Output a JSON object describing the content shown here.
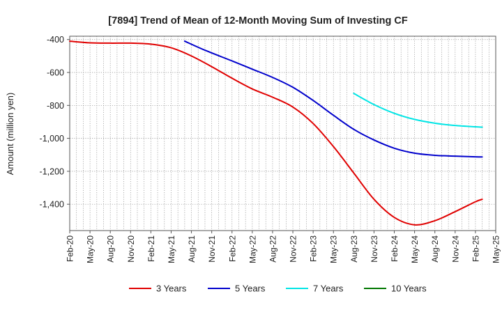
{
  "chart_data": {
    "type": "line",
    "title": "[7894]  Trend of Mean of 12-Month Moving Sum of Investing CF",
    "xlabel": "",
    "ylabel": "Amount (million yen)",
    "ylim": [
      -1560,
      -380
    ],
    "yticks": [
      -400,
      -600,
      -800,
      -1000,
      -1200,
      -1400
    ],
    "ytick_labels": [
      "-400",
      "-600",
      "-800",
      "-1,000",
      "-1,200",
      "-1,400"
    ],
    "x_start": "Feb-20",
    "x_end": "May-25",
    "xtick_labels": [
      "Feb-20",
      "May-20",
      "Aug-20",
      "Nov-20",
      "Feb-21",
      "May-21",
      "Aug-21",
      "Nov-21",
      "Feb-22",
      "May-22",
      "Aug-22",
      "Nov-22",
      "Feb-23",
      "May-23",
      "Aug-23",
      "Nov-23",
      "Feb-24",
      "May-24",
      "Aug-24",
      "Nov-24",
      "Feb-25",
      "May-25"
    ],
    "grid": true,
    "legend_position": "bottom",
    "series": [
      {
        "name": "3 Years",
        "color": "#e00000",
        "points": [
          [
            0,
            -410
          ],
          [
            3,
            -420
          ],
          [
            6,
            -422
          ],
          [
            9,
            -422
          ],
          [
            12,
            -428
          ],
          [
            15,
            -450
          ],
          [
            18,
            -500
          ],
          [
            21,
            -565
          ],
          [
            24,
            -635
          ],
          [
            27,
            -700
          ],
          [
            30,
            -750
          ],
          [
            33,
            -810
          ],
          [
            36,
            -910
          ],
          [
            39,
            -1050
          ],
          [
            42,
            -1210
          ],
          [
            45,
            -1370
          ],
          [
            48,
            -1480
          ],
          [
            51,
            -1525
          ],
          [
            54,
            -1500
          ],
          [
            57,
            -1445
          ],
          [
            60,
            -1385
          ],
          [
            61,
            -1370
          ]
        ]
      },
      {
        "name": "5 Years",
        "color": "#0000cc",
        "points": [
          [
            17,
            -410
          ],
          [
            20,
            -465
          ],
          [
            24,
            -530
          ],
          [
            27,
            -580
          ],
          [
            30,
            -630
          ],
          [
            33,
            -690
          ],
          [
            36,
            -770
          ],
          [
            39,
            -860
          ],
          [
            42,
            -945
          ],
          [
            45,
            -1010
          ],
          [
            48,
            -1060
          ],
          [
            51,
            -1090
          ],
          [
            54,
            -1103
          ],
          [
            57,
            -1108
          ],
          [
            60,
            -1112
          ],
          [
            61,
            -1113
          ]
        ]
      },
      {
        "name": "7 Years",
        "color": "#00e5e5",
        "points": [
          [
            42,
            -727
          ],
          [
            45,
            -795
          ],
          [
            48,
            -848
          ],
          [
            51,
            -885
          ],
          [
            54,
            -908
          ],
          [
            57,
            -922
          ],
          [
            60,
            -930
          ],
          [
            61,
            -932
          ]
        ]
      },
      {
        "name": "10 Years",
        "color": "#007700",
        "points": []
      }
    ]
  }
}
